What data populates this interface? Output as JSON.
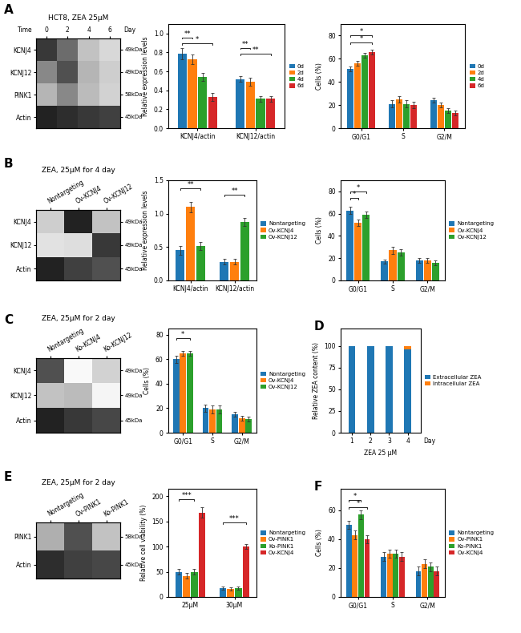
{
  "chart_data": [
    {
      "type": "heatmap",
      "panel": "A",
      "title": "HCT8, ZEA 25μM",
      "x": [
        "0",
        "2",
        "4",
        "6"
      ],
      "y": [
        "KCNJ4",
        "KCNJ12",
        "PINK1",
        "Actin"
      ],
      "y2_categories": [
        "49kDa",
        "49kDa",
        "58kDa",
        "45kDa"
      ],
      "cells": [
        [
          0.82,
          0.65,
          0.35,
          0.25
        ],
        [
          0.55,
          0.75,
          0.4,
          0.3
        ],
        [
          0.4,
          0.55,
          0.38,
          0.28
        ],
        [
          0.88,
          0.85,
          0.82,
          0.8
        ]
      ],
      "clim": [
        0,
        1
      ],
      "annotations": [
        "Time",
        "Day"
      ]
    },
    {
      "type": "bar",
      "categories": [
        "KCNJ4/actin",
        "KCNJ12/actin"
      ],
      "ylabel": "Relative expression levels",
      "ylim": [
        0.0,
        1.1
      ],
      "yticks": [
        0.0,
        0.2,
        0.4,
        0.6,
        0.8,
        1.0
      ],
      "legend": "right",
      "series": [
        {
          "name": "0d",
          "values": [
            0.79,
            0.52
          ],
          "errors": [
            0.06,
            0.03
          ]
        },
        {
          "name": "2d",
          "values": [
            0.73,
            0.49
          ],
          "errors": [
            0.05,
            0.04
          ]
        },
        {
          "name": "4d",
          "values": [
            0.54,
            0.31
          ],
          "errors": [
            0.04,
            0.03
          ]
        },
        {
          "name": "6d",
          "values": [
            0.33,
            0.31
          ],
          "errors": [
            0.04,
            0.03
          ]
        }
      ],
      "annotations": [
        {
          "text": "**",
          "category": "KCNJ4/actin",
          "from": "0d",
          "to": "2d",
          "y": 0.96
        },
        {
          "text": "*",
          "category": "KCNJ4/actin",
          "from": "0d",
          "to": "6d",
          "y": 0.9
        },
        {
          "text": "**",
          "category": "KCNJ12/actin",
          "from": "0d",
          "to": "2d",
          "y": 0.85
        },
        {
          "text": "**",
          "category": "KCNJ12/actin",
          "from": "0d",
          "to": "6d",
          "y": 0.79
        }
      ]
    },
    {
      "type": "bar",
      "categories": [
        "G0/G1",
        "S",
        "G2/M"
      ],
      "ylabel": "Cells (%)",
      "ylim": [
        0,
        90
      ],
      "yticks": [
        0,
        20,
        40,
        60,
        80
      ],
      "legend": "right",
      "series": [
        {
          "name": "0d",
          "values": [
            51,
            21,
            24
          ],
          "errors": [
            2,
            3,
            2
          ]
        },
        {
          "name": "2d",
          "values": [
            56,
            25,
            20
          ],
          "errors": [
            2,
            3,
            2
          ]
        },
        {
          "name": "4d",
          "values": [
            63,
            21,
            15
          ],
          "errors": [
            2,
            3,
            2
          ]
        },
        {
          "name": "6d",
          "values": [
            66,
            20,
            13
          ],
          "errors": [
            2,
            3,
            2
          ]
        }
      ],
      "annotations": [
        {
          "text": "*",
          "category": "G0/G1",
          "from": "0d",
          "to": "6d",
          "y": 80
        },
        {
          "text": "*",
          "category": "G0/G1",
          "from": "0d",
          "to": "6d",
          "y": 74
        }
      ]
    },
    {
      "type": "heatmap",
      "panel": "B",
      "title": "ZEA, 25μM for 4 day",
      "x": [
        "Nontargeting",
        "Ov-KCNJ4",
        "Ov-KCNJ12"
      ],
      "y": [
        "KCNJ4",
        "KCNJ12",
        "Actin"
      ],
      "y2_categories": [
        "49kDa",
        "49kDa",
        "45kDa"
      ],
      "cells": [
        [
          0.3,
          0.88,
          0.35
        ],
        [
          0.2,
          0.22,
          0.82
        ],
        [
          0.88,
          0.8,
          0.75
        ]
      ],
      "clim": [
        0,
        1
      ]
    },
    {
      "type": "bar",
      "categories": [
        "KCNJ4/actin",
        "KCNJ12/actin"
      ],
      "ylabel": "Relative expression levels",
      "ylim": [
        0.0,
        1.5
      ],
      "yticks": [
        0.0,
        0.5,
        1.0,
        1.5
      ],
      "legend": "right",
      "series": [
        {
          "name": "Nontargeting",
          "values": [
            0.45,
            0.28
          ],
          "errors": [
            0.07,
            0.04
          ]
        },
        {
          "name": "Ov-KCNJ4",
          "values": [
            1.1,
            0.28
          ],
          "errors": [
            0.08,
            0.04
          ]
        },
        {
          "name": "Ov-KCNJ12",
          "values": [
            0.52,
            0.88
          ],
          "errors": [
            0.06,
            0.06
          ]
        }
      ],
      "annotations": [
        {
          "text": "**",
          "category": "KCNJ4/actin",
          "from": "Nontargeting",
          "to": "Ov-KCNJ12",
          "y": 1.38
        },
        {
          "text": "**",
          "category": "KCNJ12/actin",
          "from": "Nontargeting",
          "to": "Ov-KCNJ12",
          "y": 1.28
        }
      ]
    },
    {
      "type": "bar",
      "categories": [
        "G0/G1",
        "S",
        "G2/M"
      ],
      "ylabel": "Cells (%)",
      "ylim": [
        0,
        90
      ],
      "yticks": [
        0,
        20,
        40,
        60,
        80
      ],
      "legend": "right",
      "series": [
        {
          "name": "Nontargeting",
          "values": [
            63,
            17,
            18
          ],
          "errors": [
            3,
            2,
            2
          ]
        },
        {
          "name": "Ov-KCNJ4",
          "values": [
            52,
            27,
            18
          ],
          "errors": [
            3,
            3,
            2
          ]
        },
        {
          "name": "Ov-KCNJ12",
          "values": [
            59,
            25,
            16
          ],
          "errors": [
            3,
            3,
            2
          ]
        }
      ],
      "annotations": [
        {
          "text": "*",
          "category": "G0/G1",
          "from": "Nontargeting",
          "to": "Ov-KCNJ12",
          "y": 80
        },
        {
          "text": "*",
          "category": "G0/G1",
          "from": "Nontargeting",
          "to": "Ov-KCNJ4",
          "y": 74
        }
      ]
    },
    {
      "type": "heatmap",
      "panel": "C",
      "title": "ZEA, 25μM for 2 day",
      "x": [
        "Nontargeting",
        "Ko-KCNJ4",
        "Ko-KCNJ12"
      ],
      "y": [
        "KCNJ4",
        "KCNJ12",
        "Actin"
      ],
      "y2_categories": [
        "49kDa",
        "49kDa",
        "45kDa"
      ],
      "cells": [
        [
          0.75,
          0.05,
          0.28
        ],
        [
          0.35,
          0.38,
          0.08
        ],
        [
          0.88,
          0.82,
          0.78
        ]
      ],
      "clim": [
        0,
        1
      ]
    },
    {
      "type": "bar",
      "categories": [
        "G0/G1",
        "S",
        "G2/M"
      ],
      "ylabel": "Cells (%)",
      "ylim": [
        0,
        85
      ],
      "yticks": [
        0,
        20,
        40,
        60,
        80
      ],
      "legend": "right",
      "series": [
        {
          "name": "Nontargeting",
          "values": [
            60,
            20,
            15
          ],
          "errors": [
            3,
            3,
            2
          ]
        },
        {
          "name": "Ov-KCNJ4",
          "values": [
            65,
            19,
            12
          ],
          "errors": [
            2,
            3,
            2
          ]
        },
        {
          "name": "Ov-KCNJ12",
          "values": [
            65,
            19,
            11
          ],
          "errors": [
            2,
            3,
            2
          ]
        }
      ],
      "annotations": [
        {
          "text": "*",
          "category": "G0/G1",
          "from": "Nontargeting",
          "to": "Ov-KCNJ12",
          "y": 77
        }
      ]
    },
    {
      "type": "bar",
      "stacked": true,
      "panel": "D",
      "x": [
        1,
        2,
        3,
        4
      ],
      "xlim": [
        0.4,
        4.7
      ],
      "xticks": [
        1,
        2,
        3,
        4
      ],
      "xlabel": "ZEA 25 μM",
      "ylabel": "Relative ZEA content (%)",
      "ylim": [
        0,
        120
      ],
      "yticks": [
        0,
        25,
        50,
        75,
        100
      ],
      "legend": "right",
      "series": [
        {
          "name": "Extracellular ZEA",
          "values": [
            100,
            100,
            100,
            96
          ]
        },
        {
          "name": "Intracellular ZEA",
          "values": [
            0,
            0,
            0,
            4
          ]
        }
      ],
      "annotations": [
        "Day"
      ]
    },
    {
      "type": "heatmap",
      "panel": "E",
      "title": "ZEA, 25μM for 2 day",
      "x": [
        "Nontargeting",
        "Ov-PINK1",
        "Ko-PINK1"
      ],
      "y": [
        "PINK1",
        "Actin"
      ],
      "y2_categories": [
        "58kDa",
        "45kDa"
      ],
      "cells": [
        [
          0.42,
          0.75,
          0.35
        ],
        [
          0.85,
          0.8,
          0.78
        ]
      ],
      "clim": [
        0,
        1
      ]
    },
    {
      "type": "bar",
      "categories": [
        "25μM",
        "30μM"
      ],
      "ylabel": "Relative cell viability (%)",
      "ylim": [
        0,
        215
      ],
      "yticks": [
        0,
        50,
        100,
        150,
        200
      ],
      "legend": "right",
      "series": [
        {
          "name": "Nontargeting",
          "values": [
            50,
            17
          ],
          "errors": [
            5,
            3
          ]
        },
        {
          "name": "Ov-PINK1",
          "values": [
            42,
            16
          ],
          "errors": [
            5,
            3
          ]
        },
        {
          "name": "Ko-PINK1",
          "values": [
            50,
            18
          ],
          "errors": [
            5,
            3
          ]
        },
        {
          "name": "Ov-KCNJ4",
          "values": [
            168,
            100
          ],
          "errors": [
            10,
            5
          ]
        }
      ],
      "annotations": [
        {
          "text": "***",
          "category": "25μM",
          "from": "Nontargeting",
          "to": "Ko-PINK1",
          "y": 195
        },
        {
          "text": "***",
          "category": "30μM",
          "from": "Nontargeting",
          "to": "Ov-KCNJ4",
          "y": 148
        }
      ]
    },
    {
      "type": "bar",
      "panel": "F",
      "categories": [
        "G0/G1",
        "S",
        "G2/M"
      ],
      "ylabel": "Cells (%)",
      "ylim": [
        0,
        75
      ],
      "yticks": [
        0,
        20,
        40,
        60
      ],
      "legend": "right",
      "series": [
        {
          "name": "Nontargeting",
          "values": [
            50,
            28,
            18
          ],
          "errors": [
            3,
            3,
            3
          ]
        },
        {
          "name": "Ov-PINK1",
          "values": [
            43,
            30,
            23
          ],
          "errors": [
            3,
            3,
            3
          ]
        },
        {
          "name": "Ko-PINK1",
          "values": [
            57,
            30,
            21
          ],
          "errors": [
            3,
            3,
            3
          ]
        },
        {
          "name": "Ov-KCNJ4",
          "values": [
            40,
            28,
            18
          ],
          "errors": [
            3,
            3,
            3
          ]
        }
      ],
      "annotations": [
        {
          "text": "*",
          "category": "G0/G1",
          "from": "Nontargeting",
          "to": "Ko-PINK1",
          "y": 67
        },
        {
          "text": "*",
          "category": "G0/G1",
          "from": "Nontargeting",
          "to": "Ov-KCNJ4",
          "y": 62
        }
      ]
    }
  ]
}
